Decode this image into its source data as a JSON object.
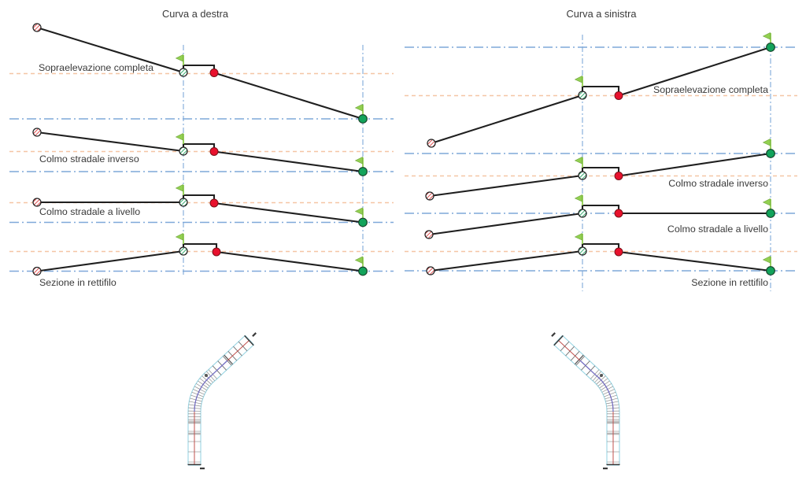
{
  "diagram": {
    "panels": [
      {
        "title": "Curva a destra",
        "sections": [
          {
            "label": "Sopraelevazione completa"
          },
          {
            "label": "Colmo stradale inverso"
          },
          {
            "label": "Colmo stradale a livello"
          },
          {
            "label": "Sezione in rettifilo"
          }
        ]
      },
      {
        "title": "Curva a sinistra",
        "sections": [
          {
            "label": "Sopraelevazione completa"
          },
          {
            "label": "Colmo stradale inverso"
          },
          {
            "label": "Colmo stradale a livello"
          },
          {
            "label": "Sezione in rettifilo"
          }
        ]
      }
    ]
  },
  "icons": {
    "start_marker": "red-hatched-circle-icon",
    "crown_marker": "green-hatched-circle-icon",
    "inner_edge_marker": "red-dot-icon",
    "outer_edge_marker": "green-dot-icon",
    "flag": "green-flag-icon"
  },
  "colors": {
    "page_background": "#ffffff",
    "section_line": "#1f1f1f",
    "guide_orange": "#F5C6A5",
    "guide_blue": "#7FA8D9",
    "flag_green": "#92D050",
    "flag_outline": "#6FA33F",
    "point_green": "#12A35B",
    "point_green_outline": "#17452B",
    "point_red": "#E8112D",
    "point_red_outline": "#7B1218",
    "hatch_red": "#D93030",
    "hatch_green": "#18A05A",
    "marker_outline": "#262626",
    "road_edge_cyan": "#9AD6E4",
    "road_centerline_red": "#C0504D",
    "road_curve_blue": "#7070C8",
    "road_tick_gray": "#8A8A8A",
    "road_end_mark": "#3A3A3A",
    "label_text": "#3A3A3A"
  }
}
